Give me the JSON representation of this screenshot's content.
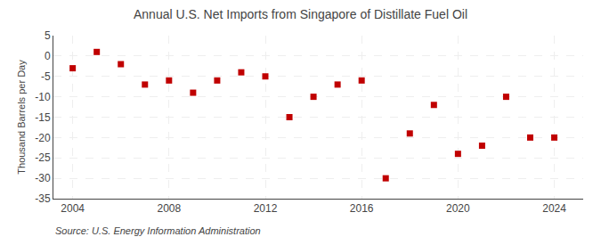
{
  "chart_data": {
    "type": "scatter",
    "title": "Annual U.S. Net Imports from Singapore of Distillate Fuel Oil",
    "ylabel": "Thousand Barrels per Day",
    "annotation": "Source: U.S. Energy Information Administration",
    "x": [
      2004,
      2005,
      2006,
      2007,
      2008,
      2009,
      2010,
      2011,
      2012,
      2013,
      2014,
      2015,
      2016,
      2017,
      2018,
      2019,
      2020,
      2021,
      2022,
      2023,
      2024
    ],
    "values": [
      -3.0,
      1.0,
      -2.0,
      -7.0,
      -6.0,
      -9.0,
      -6.0,
      -4.0,
      -5.0,
      -15.0,
      -10.0,
      -7.0,
      -6.0,
      -30.0,
      -19.0,
      -12.0,
      -24.0,
      -22.0,
      -10.0,
      -20.0,
      -20.0
    ],
    "color": "#c00000",
    "marker": "square",
    "xlim": [
      2003.2,
      2025.2
    ],
    "xticks": [
      2004,
      2008,
      2012,
      2016,
      2020,
      2024
    ],
    "ylim": [
      -35,
      5
    ],
    "yticks": [
      5,
      0,
      -5,
      -10,
      -15,
      -20,
      -25,
      -30,
      -35
    ],
    "grid": true
  }
}
